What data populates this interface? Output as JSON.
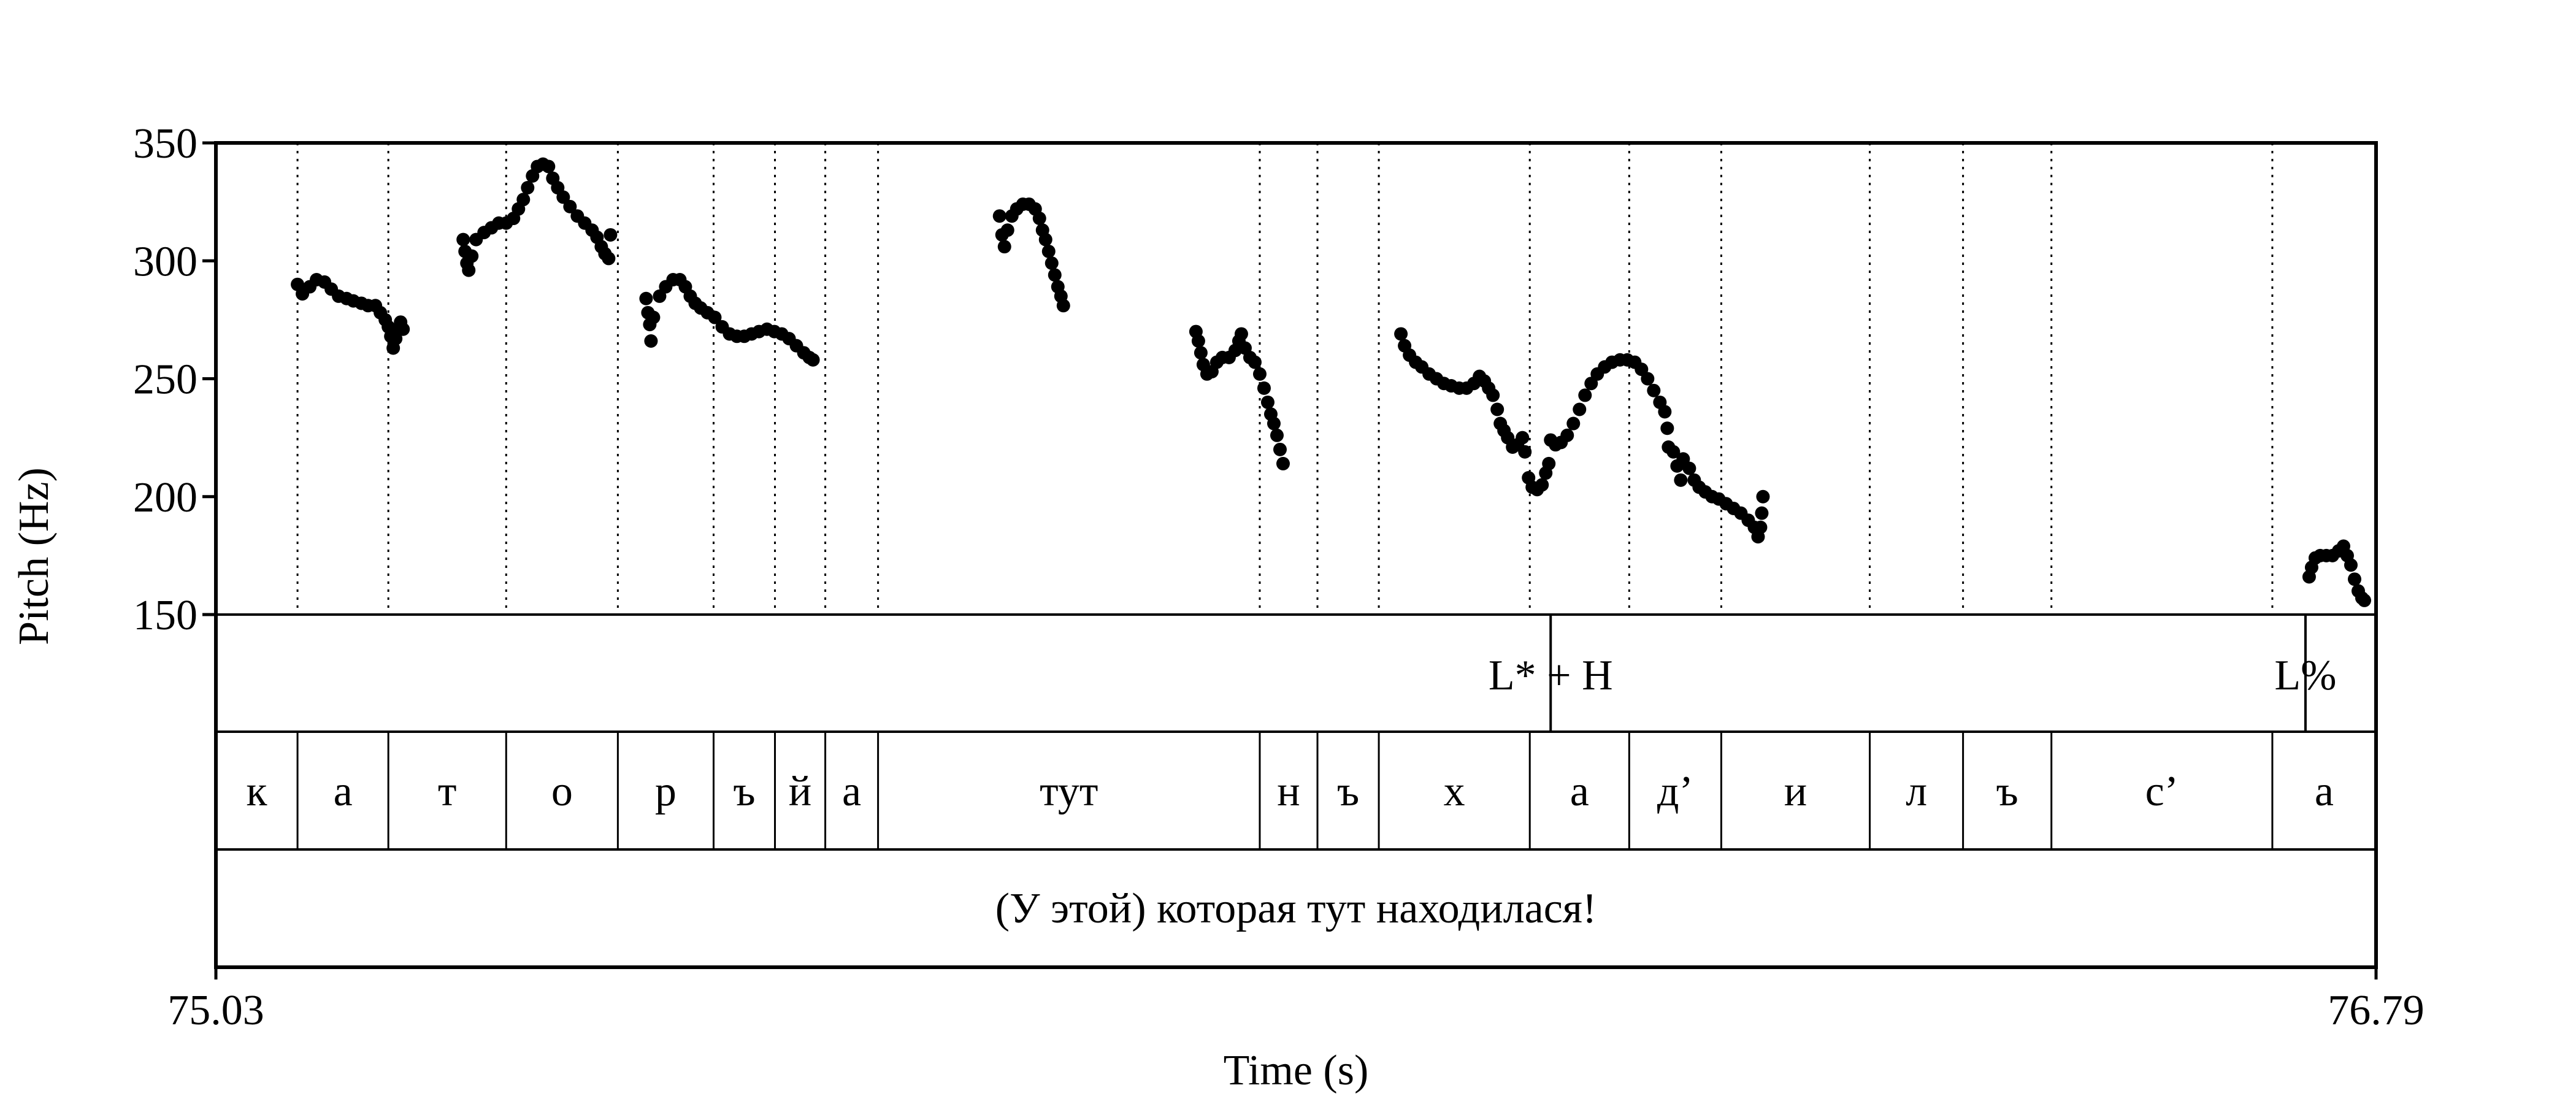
{
  "chart_data": {
    "type": "scatter",
    "xlabel": "Time (s)",
    "ylabel": "Pitch (Hz)",
    "xlim": [
      75.03,
      76.79
    ],
    "ylim": [
      150,
      350
    ],
    "x_ticks": [
      "75.03",
      "76.79"
    ],
    "y_ticks": [
      150,
      200,
      250,
      300,
      350
    ],
    "grid": false,
    "pitch_contours": [
      [
        [
          75.0965,
          290
        ],
        [
          75.1005,
          286
        ],
        [
          75.1065,
          289
        ],
        [
          75.112,
          292
        ],
        [
          75.1185,
          291
        ],
        [
          75.124,
          288
        ],
        [
          75.13,
          285
        ],
        [
          75.1365,
          284
        ],
        [
          75.142,
          283
        ],
        [
          75.1485,
          282
        ],
        [
          75.154,
          281
        ],
        [
          75.16,
          281
        ],
        [
          75.164,
          278
        ],
        [
          75.168,
          275
        ],
        [
          75.1705,
          272
        ],
        [
          75.1725,
          268
        ],
        [
          75.1745,
          263
        ],
        [
          75.1765,
          267
        ],
        [
          75.1785,
          271
        ],
        [
          75.1805,
          274
        ],
        [
          75.1825,
          271
        ]
      ],
      [
        [
          75.2315,
          309
        ],
        [
          75.233,
          304
        ],
        [
          75.2345,
          299
        ],
        [
          75.236,
          296
        ],
        [
          75.2385,
          302
        ],
        [
          75.242,
          309
        ],
        [
          75.2485,
          312
        ],
        [
          75.2545,
          314
        ],
        [
          75.2605,
          316
        ],
        [
          75.2665,
          316
        ],
        [
          75.2725,
          318
        ],
        [
          75.2765,
          322
        ],
        [
          75.2805,
          326
        ],
        [
          75.284,
          331
        ],
        [
          75.288,
          336
        ],
        [
          75.292,
          340
        ],
        [
          75.2965,
          341
        ],
        [
          75.301,
          340
        ],
        [
          75.3045,
          335
        ],
        [
          75.3085,
          331
        ],
        [
          75.313,
          327
        ],
        [
          75.3185,
          323
        ],
        [
          75.3245,
          319
        ],
        [
          75.3305,
          316
        ],
        [
          75.3365,
          313
        ],
        [
          75.3405,
          310
        ],
        [
          75.344,
          306
        ],
        [
          75.347,
          303
        ],
        [
          75.35,
          301
        ],
        [
          75.3515,
          311
        ]
      ],
      [
        [
          75.3805,
          284
        ],
        [
          75.382,
          278
        ],
        [
          75.3835,
          273
        ],
        [
          75.3845,
          266
        ],
        [
          75.3865,
          276
        ],
        [
          75.3915,
          285
        ],
        [
          75.3965,
          289
        ],
        [
          75.4025,
          292
        ],
        [
          75.408,
          292
        ],
        [
          75.4125,
          289
        ],
        [
          75.4165,
          285
        ],
        [
          75.4205,
          282
        ],
        [
          75.425,
          280
        ],
        [
          75.4305,
          278
        ],
        [
          75.4365,
          276
        ],
        [
          75.4425,
          272
        ],
        [
          75.4485,
          269
        ],
        [
          75.4545,
          268
        ],
        [
          75.4605,
          268
        ],
        [
          75.4665,
          269
        ],
        [
          75.4725,
          270
        ],
        [
          75.479,
          271
        ],
        [
          75.485,
          270
        ],
        [
          75.491,
          269
        ],
        [
          75.497,
          267
        ],
        [
          75.503,
          264
        ],
        [
          75.509,
          261
        ],
        [
          75.5135,
          259
        ],
        [
          75.5165,
          258
        ]
      ],
      [
        [
          75.6685,
          319
        ],
        [
          75.6705,
          311
        ],
        [
          75.6725,
          306
        ],
        [
          75.675,
          313
        ],
        [
          75.6785,
          319
        ],
        [
          75.6825,
          322
        ],
        [
          75.6875,
          324
        ],
        [
          75.6925,
          324
        ],
        [
          75.6975,
          322
        ],
        [
          75.701,
          318
        ],
        [
          75.7035,
          313
        ],
        [
          75.706,
          309
        ],
        [
          75.7085,
          304
        ],
        [
          75.711,
          299
        ],
        [
          75.7135,
          294
        ],
        [
          75.716,
          289
        ],
        [
          75.7185,
          285
        ],
        [
          75.7205,
          281
        ]
      ],
      [
        [
          75.8285,
          270
        ],
        [
          75.8305,
          266
        ],
        [
          75.8325,
          261
        ],
        [
          75.8345,
          256
        ],
        [
          75.8375,
          252
        ],
        [
          75.8415,
          253
        ],
        [
          75.8455,
          257
        ],
        [
          75.85,
          259
        ],
        [
          75.8555,
          259
        ],
        [
          75.8605,
          262
        ],
        [
          75.8635,
          266
        ],
        [
          75.8655,
          269
        ],
        [
          75.8685,
          263
        ],
        [
          75.8725,
          259
        ],
        [
          75.8765,
          257
        ],
        [
          75.8805,
          252
        ],
        [
          75.884,
          246
        ],
        [
          75.887,
          240
        ],
        [
          75.8895,
          235
        ],
        [
          75.892,
          231
        ],
        [
          75.8945,
          226
        ],
        [
          75.897,
          220
        ],
        [
          75.8995,
          214
        ]
      ],
      [
        [
          75.9955,
          269
        ],
        [
          75.9985,
          264
        ],
        [
          76.0025,
          260
        ],
        [
          76.0075,
          257
        ],
        [
          76.0125,
          255
        ],
        [
          76.0185,
          252
        ],
        [
          76.0245,
          250
        ],
        [
          76.0305,
          248
        ],
        [
          76.0365,
          247
        ],
        [
          76.043,
          246
        ],
        [
          76.049,
          246
        ],
        [
          76.055,
          248
        ],
        [
          76.0595,
          251
        ],
        [
          76.0635,
          249
        ],
        [
          76.067,
          246
        ],
        [
          76.0705,
          243
        ],
        [
          76.074,
          237
        ],
        [
          76.0765,
          231
        ],
        [
          76.0795,
          228
        ],
        [
          76.0825,
          225
        ],
        [
          76.0865,
          221
        ],
        [
          76.0905,
          222
        ],
        [
          76.0945,
          225
        ],
        [
          76.0965,
          219
        ],
        [
          76.0995,
          208
        ],
        [
          76.1025,
          204
        ],
        [
          76.1065,
          203
        ],
        [
          76.1105,
          205
        ],
        [
          76.1135,
          210
        ],
        [
          76.116,
          214
        ],
        [
          76.1175,
          224
        ],
        [
          76.1215,
          222
        ],
        [
          76.126,
          223
        ],
        [
          76.131,
          226
        ],
        [
          76.136,
          231
        ],
        [
          76.141,
          237
        ],
        [
          76.1455,
          243
        ],
        [
          76.1505,
          248
        ],
        [
          76.1555,
          252
        ],
        [
          76.1615,
          255
        ],
        [
          76.1675,
          257
        ],
        [
          76.174,
          258
        ],
        [
          76.18,
          258
        ],
        [
          76.186,
          257
        ],
        [
          76.1915,
          254
        ],
        [
          76.1965,
          250
        ],
        [
          76.2015,
          245
        ],
        [
          76.2065,
          240
        ],
        [
          76.2105,
          236
        ],
        [
          76.2125,
          229
        ],
        [
          76.2135,
          221
        ],
        [
          76.2175,
          219
        ],
        [
          76.2205,
          213
        ],
        [
          76.2235,
          207
        ],
        [
          76.2255,
          216
        ],
        [
          76.2305,
          212
        ],
        [
          76.2345,
          207
        ],
        [
          76.2385,
          204
        ],
        [
          76.2435,
          202
        ],
        [
          76.249,
          200
        ],
        [
          76.2545,
          199
        ],
        [
          76.2605,
          197
        ],
        [
          76.2665,
          195
        ],
        [
          76.2725,
          193
        ],
        [
          76.2785,
          190
        ],
        [
          76.2835,
          187
        ],
        [
          76.2865,
          183
        ],
        [
          76.2885,
          187
        ],
        [
          76.2895,
          193
        ],
        [
          76.2905,
          200
        ]
      ],
      [
        [
          76.7355,
          166
        ],
        [
          76.7375,
          170
        ],
        [
          76.7405,
          174
        ],
        [
          76.7445,
          175
        ],
        [
          76.7495,
          175
        ],
        [
          76.7545,
          175
        ],
        [
          76.7595,
          177
        ],
        [
          76.7635,
          179
        ],
        [
          76.7665,
          175
        ],
        [
          76.7695,
          171
        ],
        [
          76.7725,
          165
        ],
        [
          76.7755,
          160
        ],
        [
          76.7785,
          157
        ],
        [
          76.7805,
          156
        ]
      ]
    ],
    "tone_tier": [
      {
        "label": "L* + H",
        "time": 76.1175
      },
      {
        "label": "L%",
        "time": 76.7325
      }
    ],
    "segment_tier": [
      {
        "label": "к",
        "start": 75.03,
        "end": 75.0965
      },
      {
        "label": "а",
        "start": 75.0965,
        "end": 75.1705
      },
      {
        "label": "т",
        "start": 75.1705,
        "end": 75.2665
      },
      {
        "label": "о",
        "start": 75.2665,
        "end": 75.3575
      },
      {
        "label": "р",
        "start": 75.3575,
        "end": 75.4355
      },
      {
        "label": "ъ",
        "start": 75.4355,
        "end": 75.4855
      },
      {
        "label": "й",
        "start": 75.4855,
        "end": 75.5265
      },
      {
        "label": "а",
        "start": 75.5265,
        "end": 75.5695
      },
      {
        "label": "тут",
        "start": 75.5695,
        "end": 75.8805
      },
      {
        "label": "н",
        "start": 75.8805,
        "end": 75.9275
      },
      {
        "label": "ъ",
        "start": 75.9275,
        "end": 75.9775
      },
      {
        "label": "х",
        "start": 75.9775,
        "end": 76.1005
      },
      {
        "label": "а",
        "start": 76.1005,
        "end": 76.1815
      },
      {
        "label": "д’",
        "start": 76.1815,
        "end": 76.2565
      },
      {
        "label": "и",
        "start": 76.2565,
        "end": 76.3775
      },
      {
        "label": "л",
        "start": 76.3775,
        "end": 76.4535
      },
      {
        "label": "ъ",
        "start": 76.4535,
        "end": 76.5255
      },
      {
        "label": "с’",
        "start": 76.5255,
        "end": 76.7055
      },
      {
        "label": "а",
        "start": 76.7055,
        "end": 76.79
      }
    ],
    "sentence_tier": "(У этой) которая тут находилася!"
  }
}
